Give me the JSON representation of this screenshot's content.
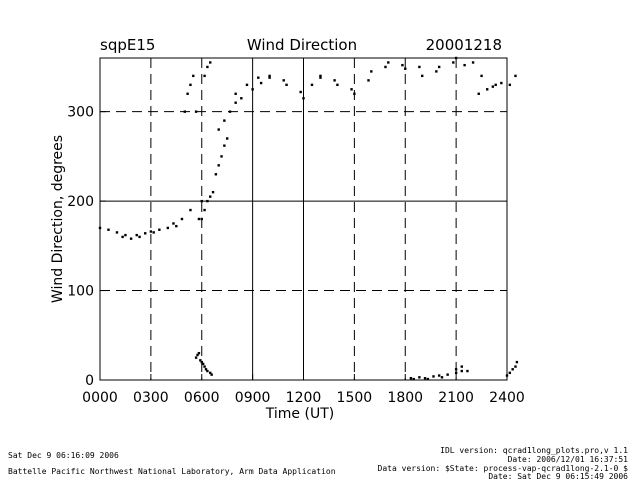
{
  "header": {
    "site": "sqpE15",
    "title": "Wind Direction",
    "date": "20001218"
  },
  "footer": {
    "left_line1": "Sat Dec  9 06:16:09 2006",
    "left_line2": "Battelle Pacific Northwest National Laboratory, Arm Data Application",
    "right_line1": "IDL version: qcrad1long_plots.pro,v 1.1",
    "right_line2": "Date: 2006/12/01 16:37:51",
    "right_line3": "Data version: $State: process-vap-qcrad1long-2.1-0 $",
    "right_line4": "Date: Sat Dec  9 06:15:49 2006"
  },
  "chart_data": {
    "type": "scatter",
    "title": "Wind Direction",
    "xlabel": "Time (UT)",
    "ylabel": "Wind Direction, degrees",
    "xlim": [
      0,
      2400
    ],
    "ylim": [
      0,
      360
    ],
    "x_ticks": [
      "0000",
      "0300",
      "0600",
      "0900",
      "1200",
      "1500",
      "1800",
      "2100",
      "2400"
    ],
    "y_ticks": [
      "0",
      "100",
      "200",
      "300"
    ],
    "grid": true,
    "series": [
      {
        "x": [
          0,
          30,
          60,
          90,
          120,
          150,
          180,
          210,
          240,
          270,
          300,
          330,
          360,
          390,
          420,
          450,
          480,
          500,
          510,
          520,
          530,
          540,
          550,
          560,
          570,
          580,
          590,
          600,
          610,
          620,
          630,
          640,
          650,
          660,
          670,
          680,
          690,
          700,
          720,
          740,
          760,
          780,
          800,
          840,
          880,
          900,
          930,
          960,
          1000,
          1050,
          1100,
          1150,
          1200,
          1230,
          1260,
          1300,
          1350,
          1400,
          1450,
          1500,
          1550,
          1600,
          1650,
          1700,
          1750,
          1800,
          1850,
          1900,
          1950,
          2000,
          2050,
          2100,
          2130,
          2160,
          2190,
          2220,
          2250,
          2280,
          2310,
          2340,
          2370,
          2390
        ],
        "y": [
          170,
          168,
          165,
          162,
          160,
          158,
          160,
          162,
          164,
          165,
          166,
          168,
          170,
          172,
          175,
          180,
          190,
          300,
          320,
          330,
          340,
          300,
          180,
          200,
          340,
          350,
          355,
          180,
          190,
          200,
          205,
          210,
          230,
          240,
          250,
          262,
          270,
          280,
          290,
          300,
          310,
          315,
          320,
          330,
          338,
          325,
          332,
          340,
          338,
          335,
          330,
          322,
          315,
          330,
          340,
          338,
          335,
          330,
          325,
          320,
          335,
          345,
          350,
          355,
          352,
          348,
          350,
          340,
          345,
          350,
          355,
          360,
          352,
          355,
          340,
          320,
          325,
          330,
          328,
          332,
          330,
          340
        ]
      },
      {
        "x": [
          540,
          545,
          550,
          555,
          560,
          565,
          570,
          575,
          580,
          590,
          595,
          1790,
          1820,
          1850,
          1880,
          1910,
          1940,
          1970,
          2000,
          2030,
          2060,
          2080,
          2100,
          2120,
          2140,
          2360,
          2370,
          2380,
          2390,
          2395
        ],
        "y": [
          25,
          28,
          30,
          22,
          20,
          18,
          15,
          12,
          10,
          8,
          6,
          1,
          2,
          3,
          1,
          2,
          4,
          3,
          5,
          6,
          8,
          10,
          12,
          15,
          10,
          5,
          8,
          12,
          15,
          20
        ]
      }
    ]
  }
}
